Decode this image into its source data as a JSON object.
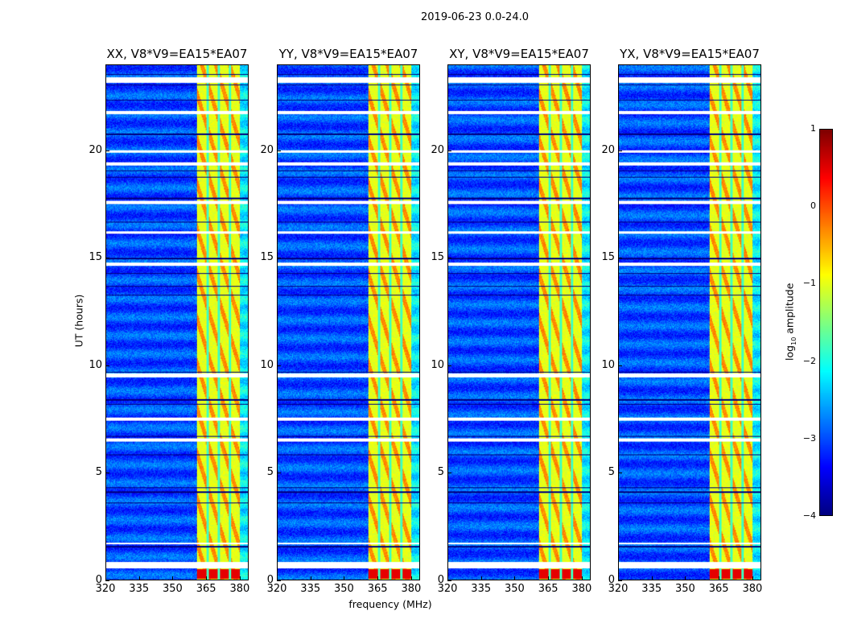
{
  "chart_data": {
    "type": "heatmap",
    "title": "2019-06-23 0.0-24.0",
    "xlabel": "frequency (MHz)",
    "ylabel": "UT (hours)",
    "xlim": [
      320,
      384
    ],
    "ylim": [
      0,
      24
    ],
    "xticks": [
      "320",
      "335",
      "350",
      "365",
      "380"
    ],
    "xtick_values": [
      320,
      335,
      350,
      365,
      380
    ],
    "yticks": [
      "0",
      "5",
      "10",
      "15",
      "20"
    ],
    "ytick_values": [
      0,
      5,
      10,
      15,
      20
    ],
    "panels": [
      {
        "title": "XX, V8*V9=EA15*EA07"
      },
      {
        "title": "YY, V8*V9=EA15*EA07"
      },
      {
        "title": "XY, V8*V9=EA15*EA07"
      },
      {
        "title": "YX, V8*V9=EA15*EA07"
      }
    ],
    "colorbar": {
      "label": "log10 amplitude",
      "label_main": "log",
      "label_sub": "10",
      "label_rest": " amplitude",
      "colormap": "jet",
      "range": [
        -4,
        1
      ],
      "ticks": [
        "1",
        "0",
        "−1",
        "−2",
        "−3",
        "−4"
      ],
      "tick_values": [
        1,
        0,
        -1,
        -2,
        -3,
        -4
      ]
    },
    "background_level": -3.0,
    "rfi_band_mhz": [
      360.7,
      380.4
    ],
    "rfi_level": -1.0,
    "rfi_channel_gaps_mhz": [
      365.6,
      370.6,
      375.6
    ],
    "strong_rfi_hours": [
      0.05,
      0.5
    ],
    "flagged_hours": [
      [
        0.55,
        0.85
      ],
      [
        1.65,
        1.75
      ],
      [
        6.45,
        6.6
      ],
      [
        7.45,
        7.6
      ],
      [
        9.45,
        9.65
      ],
      [
        14.65,
        14.8
      ],
      [
        16.15,
        16.25
      ],
      [
        17.55,
        17.68
      ],
      [
        19.35,
        19.5
      ],
      [
        19.95,
        20.05
      ],
      [
        21.75,
        21.9
      ],
      [
        23.2,
        23.45
      ]
    ],
    "dark_lines_hours": [
      1.55,
      3.6,
      4.1,
      4.3,
      5.85,
      6.7,
      8.2,
      8.4,
      9.7,
      13.3,
      13.7,
      14.3,
      15.0,
      16.7,
      17.8,
      18.8,
      19.1,
      20.8,
      22.4,
      23.1,
      23.6
    ]
  }
}
